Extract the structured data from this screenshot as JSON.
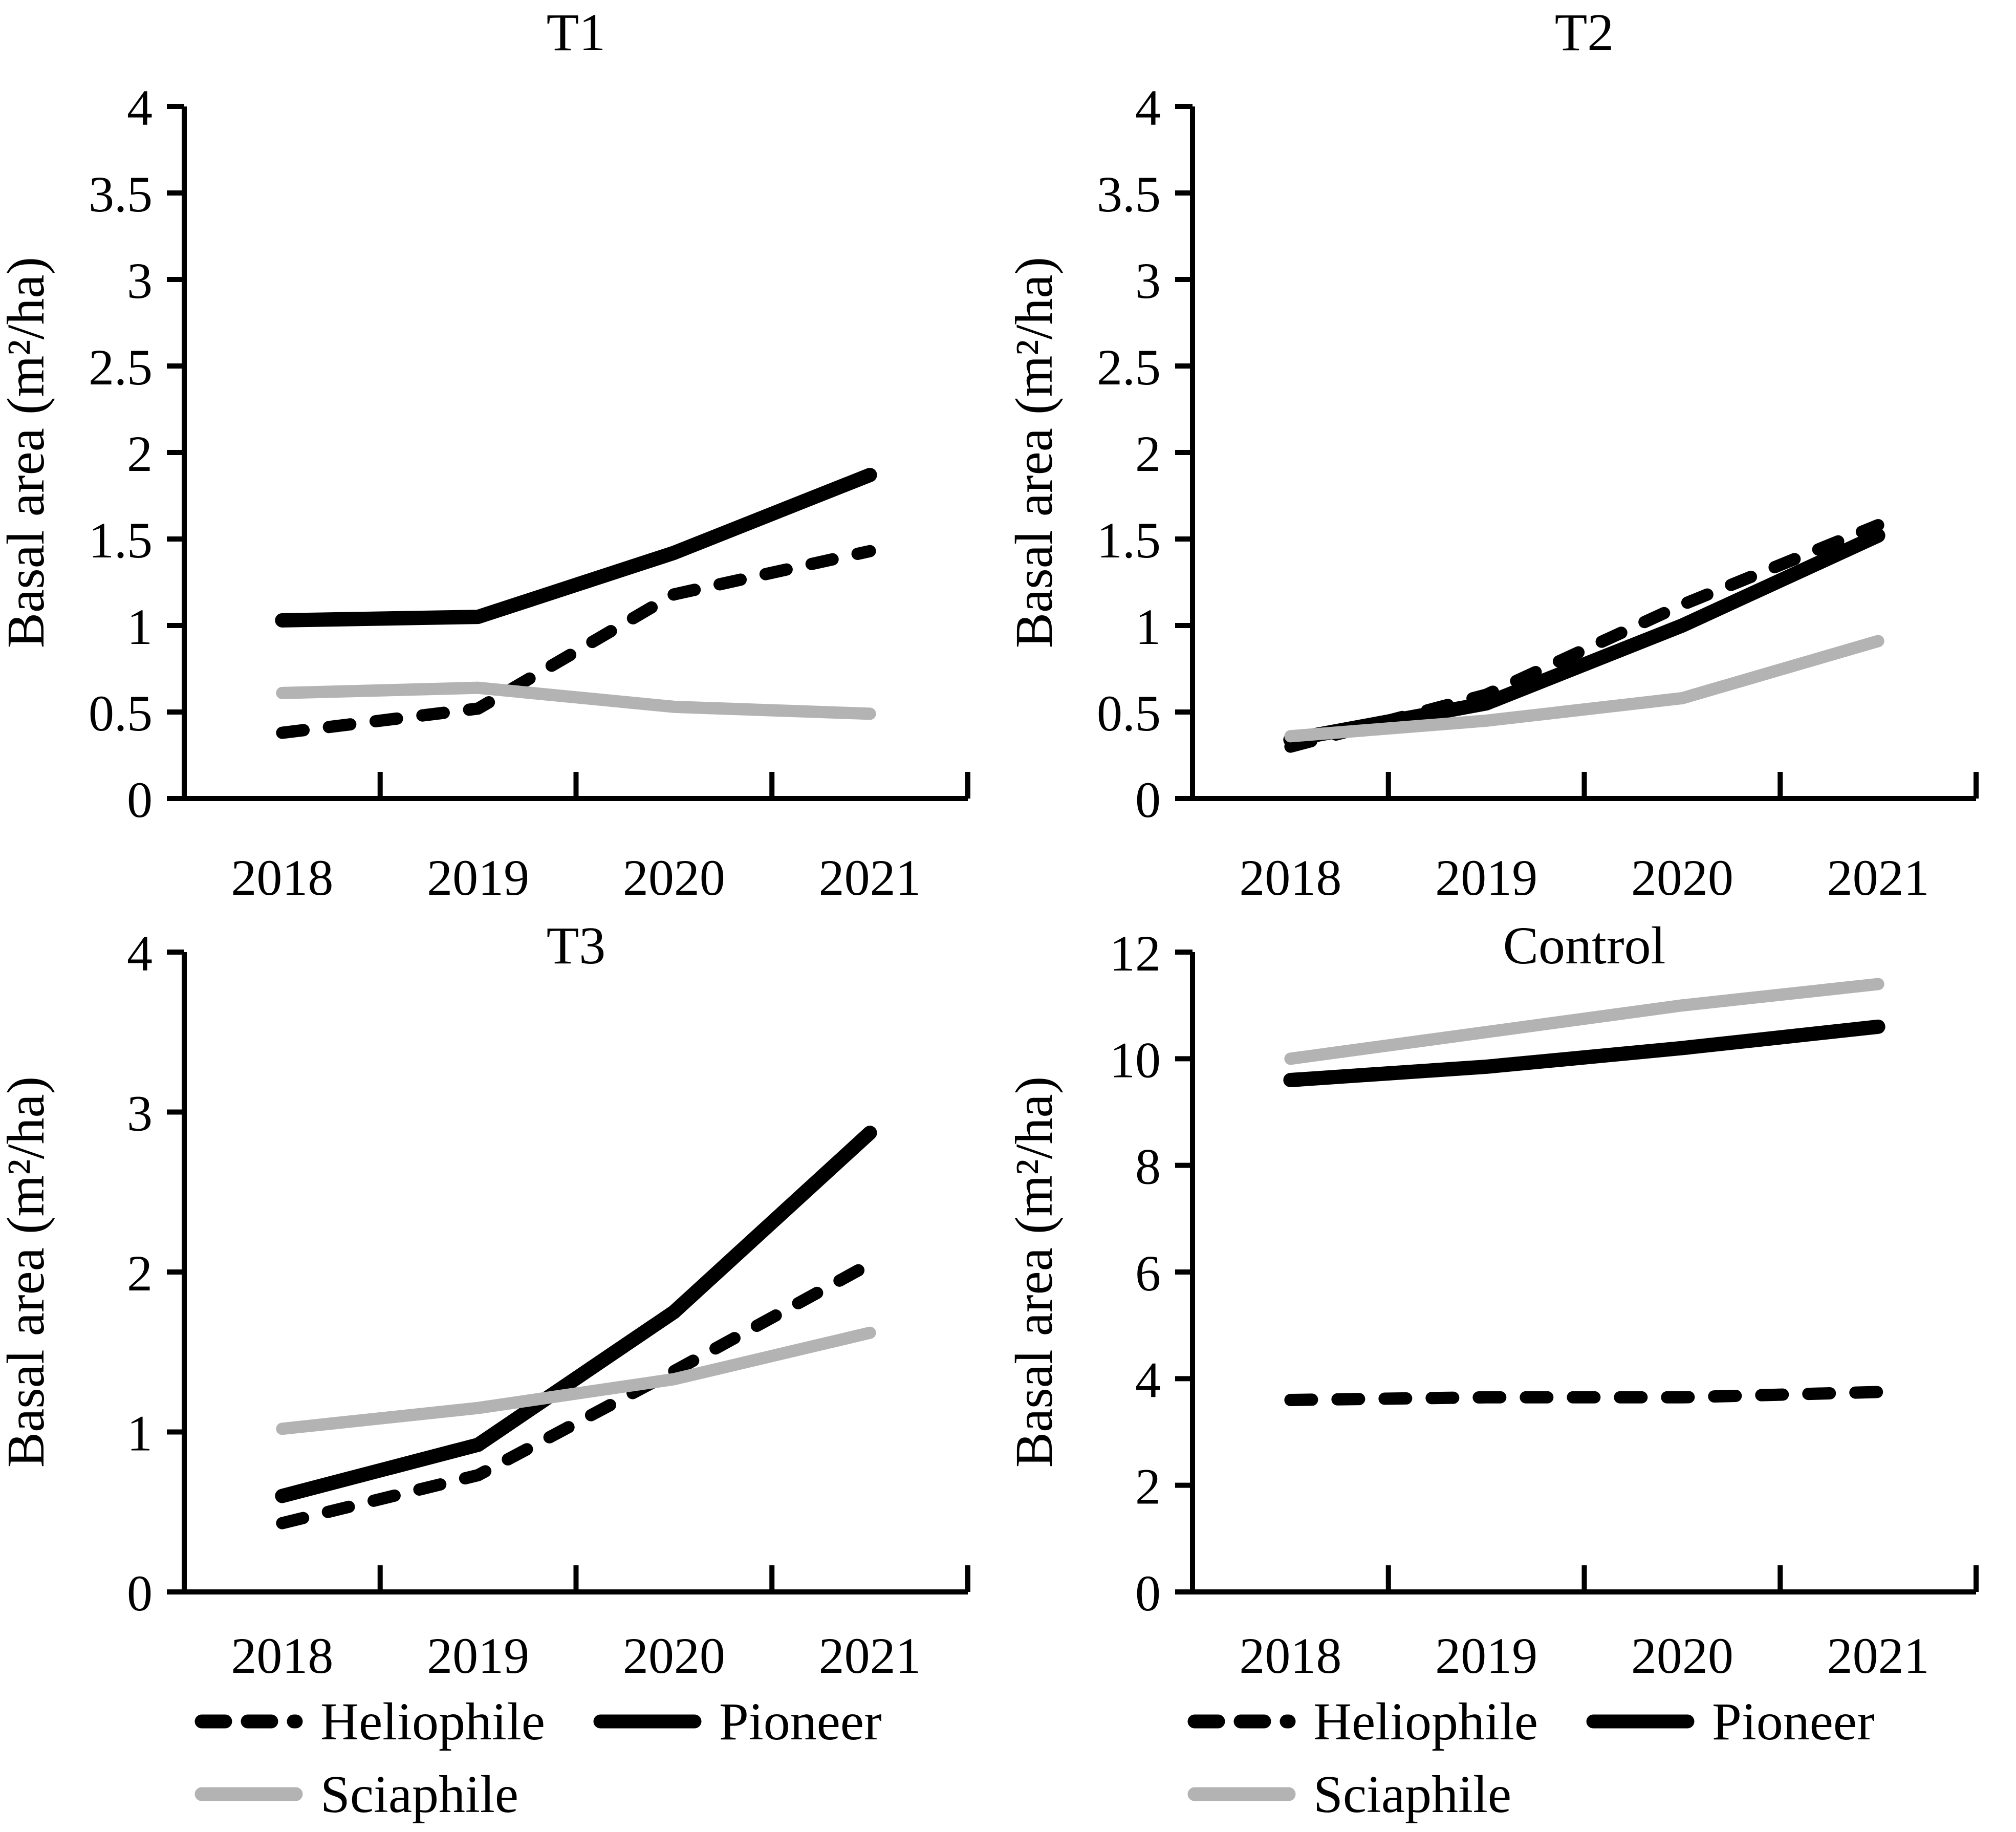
{
  "figure": {
    "ylabel": "Basal area (m²/ha)",
    "categories": [
      "2018",
      "2019",
      "2020",
      "2021"
    ],
    "colors": {
      "line_black": "#000000",
      "line_gray": "#b3b3b3",
      "axis": "#000000",
      "background": "#ffffff"
    },
    "legend": {
      "items": [
        {
          "label": "Heliophile",
          "style": "dashed",
          "color": "#000000"
        },
        {
          "label": "Pioneer",
          "style": "solid",
          "color": "#000000"
        },
        {
          "label": "Sciaphile",
          "style": "gray",
          "color": "#b3b3b3"
        }
      ]
    }
  },
  "chart_data": [
    {
      "type": "line",
      "title": "T1",
      "xlabel": "",
      "ylabel": "Basal area (m²/ha)",
      "categories": [
        "2018",
        "2019",
        "2020",
        "2021"
      ],
      "ylim": [
        0,
        4
      ],
      "ytick_step": 0.5,
      "grid": false,
      "legend_position": "bottom",
      "series": [
        {
          "name": "Heliophile",
          "style": "dashed",
          "color": "#000000",
          "values": [
            0.38,
            0.52,
            1.18,
            1.43
          ]
        },
        {
          "name": "Pioneer",
          "style": "solid",
          "color": "#000000",
          "values": [
            1.03,
            1.05,
            1.42,
            1.87
          ]
        },
        {
          "name": "Sciaphile",
          "style": "solid",
          "color": "#b3b3b3",
          "values": [
            0.61,
            0.64,
            0.53,
            0.49
          ]
        }
      ]
    },
    {
      "type": "line",
      "title": "T2",
      "xlabel": "",
      "ylabel": "Basal area (m²/ha)",
      "categories": [
        "2018",
        "2019",
        "2020",
        "2021"
      ],
      "ylim": [
        0,
        4
      ],
      "ytick_step": 0.5,
      "grid": false,
      "legend_position": "bottom",
      "series": [
        {
          "name": "Heliophile",
          "style": "dashed",
          "color": "#000000",
          "values": [
            0.3,
            0.6,
            1.12,
            1.58
          ]
        },
        {
          "name": "Pioneer",
          "style": "solid",
          "color": "#000000",
          "values": [
            0.34,
            0.55,
            1.0,
            1.52
          ]
        },
        {
          "name": "Sciaphile",
          "style": "solid",
          "color": "#b3b3b3",
          "values": [
            0.36,
            0.45,
            0.58,
            0.91
          ]
        }
      ]
    },
    {
      "type": "line",
      "title": "T3",
      "xlabel": "",
      "ylabel": "Basal area (m²/ha)",
      "categories": [
        "2018",
        "2019",
        "2020",
        "2021"
      ],
      "ylim": [
        0,
        4
      ],
      "ytick_step": 1,
      "grid": false,
      "legend_position": "bottom",
      "series": [
        {
          "name": "Heliophile",
          "style": "dashed",
          "color": "#000000",
          "values": [
            0.43,
            0.73,
            1.38,
            2.05
          ]
        },
        {
          "name": "Pioneer",
          "style": "solid",
          "color": "#000000",
          "values": [
            0.6,
            0.92,
            1.75,
            2.87
          ]
        },
        {
          "name": "Sciaphile",
          "style": "solid",
          "color": "#b3b3b3",
          "values": [
            1.02,
            1.15,
            1.33,
            1.62
          ]
        }
      ]
    },
    {
      "type": "line",
      "title": "Control",
      "xlabel": "",
      "ylabel": "Basal area (m²/ha)",
      "categories": [
        "2018",
        "2019",
        "2020",
        "2021"
      ],
      "ylim": [
        0,
        12
      ],
      "ytick_step": 2,
      "grid": false,
      "legend_position": "bottom",
      "series": [
        {
          "name": "Heliophile",
          "style": "dashed",
          "color": "#000000",
          "values": [
            3.6,
            3.65,
            3.65,
            3.75
          ]
        },
        {
          "name": "Pioneer",
          "style": "solid",
          "color": "#000000",
          "values": [
            9.6,
            9.85,
            10.2,
            10.6
          ]
        },
        {
          "name": "Sciaphile",
          "style": "solid",
          "color": "#b3b3b3",
          "values": [
            10.0,
            10.5,
            11.0,
            11.4
          ]
        }
      ]
    }
  ]
}
